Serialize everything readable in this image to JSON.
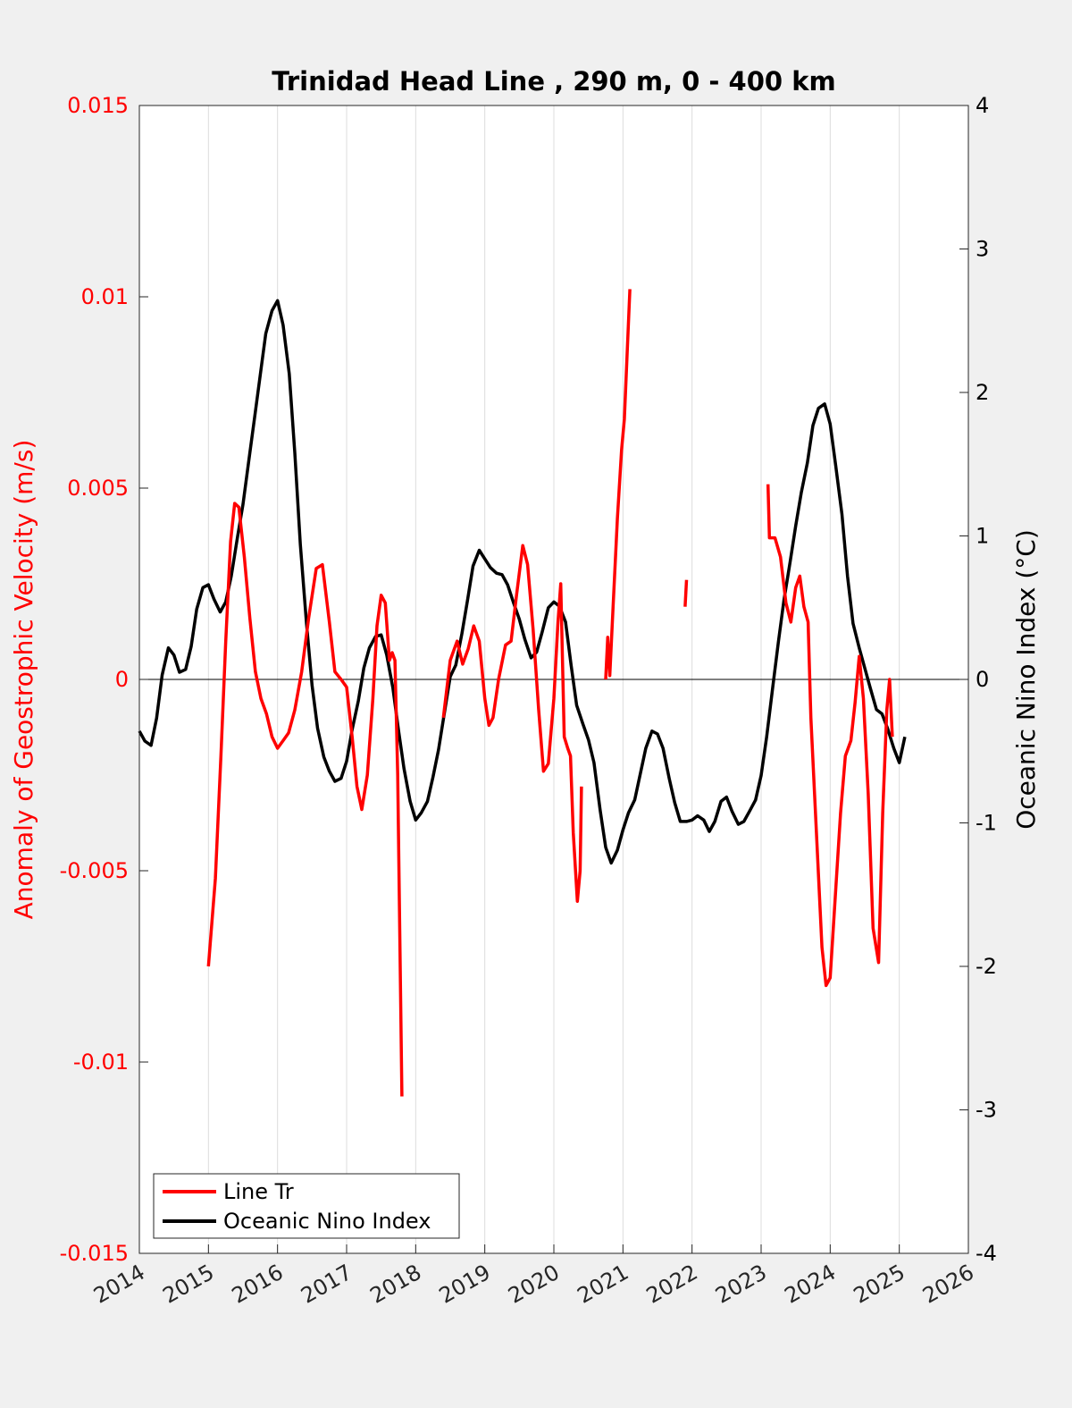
{
  "chart_data": {
    "type": "line",
    "title": "Trinidad Head Line , 290 m, 0 - 400 km",
    "ylabel_left": "Anomaly of Geostrophic Velocity (m/s)",
    "ylabel_right": "Oceanic Nino Index (°C)",
    "xlim": [
      2014,
      2026
    ],
    "ylim_left": [
      -0.015,
      0.015
    ],
    "ylim_right": [
      -4,
      4
    ],
    "x_ticks": [
      "2014",
      "2015",
      "2016",
      "2017",
      "2018",
      "2019",
      "2020",
      "2021",
      "2022",
      "2023",
      "2024",
      "2025",
      "2026"
    ],
    "y_left_ticks": [
      "0.015",
      "0.01",
      "0.005",
      "0",
      "-0.005",
      "-0.01",
      "-0.015"
    ],
    "y_left_tick_values": [
      0.015,
      0.01,
      0.005,
      0,
      -0.005,
      -0.01,
      -0.015
    ],
    "y_right_ticks": [
      "4",
      "3",
      "2",
      "1",
      "0",
      "-1",
      "-2",
      "-3",
      "-4"
    ],
    "y_right_tick_values": [
      4,
      3,
      2,
      1,
      0,
      -1,
      -2,
      -3,
      -4
    ],
    "grid_x": true,
    "legend_position": "bottom-left",
    "colors": {
      "line_tr": "#ff0000",
      "oni": "#000000"
    },
    "series": [
      {
        "name": "Line Tr",
        "axis": "left",
        "segments": [
          [
            [
              2015.0,
              -0.0075
            ],
            [
              2015.1,
              -0.0052
            ],
            [
              2015.18,
              -0.002
            ],
            [
              2015.25,
              0.001
            ],
            [
              2015.32,
              0.0036
            ],
            [
              2015.38,
              0.0046
            ],
            [
              2015.44,
              0.0045
            ],
            [
              2015.52,
              0.0032
            ],
            [
              2015.6,
              0.0016
            ],
            [
              2015.68,
              0.0002
            ],
            [
              2015.76,
              -0.0005
            ],
            [
              2015.84,
              -0.0009
            ],
            [
              2015.92,
              -0.0015
            ],
            [
              2016.0,
              -0.0018
            ],
            [
              2016.08,
              -0.0016
            ],
            [
              2016.16,
              -0.0014
            ],
            [
              2016.25,
              -0.0008
            ],
            [
              2016.35,
              0.0002
            ],
            [
              2016.45,
              0.0016
            ],
            [
              2016.56,
              0.0029
            ],
            [
              2016.65,
              0.003
            ],
            [
              2016.75,
              0.0015
            ],
            [
              2016.83,
              0.0002
            ],
            [
              2016.92,
              0.0
            ],
            [
              2017.0,
              -0.0002
            ],
            [
              2017.08,
              -0.0015
            ],
            [
              2017.15,
              -0.0028
            ],
            [
              2017.22,
              -0.0034
            ],
            [
              2017.3,
              -0.0025
            ],
            [
              2017.38,
              -0.0005
            ],
            [
              2017.44,
              0.0014
            ],
            [
              2017.5,
              0.0022
            ],
            [
              2017.56,
              0.002
            ],
            [
              2017.62,
              0.0005
            ],
            [
              2017.66,
              0.0007
            ],
            [
              2017.7,
              0.0005
            ],
            [
              2017.74,
              -0.0025
            ],
            [
              2017.8,
              -0.0109
            ]
          ],
          [
            [
              2018.4,
              -0.001
            ],
            [
              2018.5,
              0.0005
            ],
            [
              2018.6,
              0.001
            ],
            [
              2018.68,
              0.0004
            ],
            [
              2018.76,
              0.0008
            ],
            [
              2018.84,
              0.0014
            ],
            [
              2018.92,
              0.001
            ],
            [
              2019.0,
              -0.0005
            ],
            [
              2019.06,
              -0.0012
            ],
            [
              2019.12,
              -0.001
            ],
            [
              2019.2,
              0.0
            ],
            [
              2019.3,
              0.0009
            ],
            [
              2019.38,
              0.001
            ],
            [
              2019.46,
              0.0022
            ],
            [
              2019.55,
              0.0035
            ],
            [
              2019.62,
              0.003
            ],
            [
              2019.7,
              0.0013
            ],
            [
              2019.78,
              -0.0008
            ],
            [
              2019.85,
              -0.0024
            ],
            [
              2019.92,
              -0.0022
            ],
            [
              2020.0,
              -0.0005
            ],
            [
              2020.06,
              0.0015
            ],
            [
              2020.1,
              0.0025
            ],
            [
              2020.15,
              -0.0015
            ],
            [
              2020.2,
              -0.0018
            ],
            [
              2020.24,
              -0.002
            ],
            [
              2020.28,
              -0.004
            ],
            [
              2020.34,
              -0.0058
            ],
            [
              2020.38,
              -0.005
            ],
            [
              2020.4,
              -0.0028
            ]
          ],
          [
            [
              2020.75,
              0.0
            ],
            [
              2020.78,
              0.0011
            ],
            [
              2020.81,
              0.0001
            ],
            [
              2020.86,
              0.002
            ],
            [
              2020.92,
              0.0042
            ],
            [
              2020.98,
              0.006
            ],
            [
              2021.02,
              0.0068
            ],
            [
              2021.06,
              0.0085
            ],
            [
              2021.1,
              0.0102
            ]
          ],
          [
            [
              2021.9,
              0.0019
            ],
            [
              2021.92,
              0.0026
            ]
          ],
          [
            [
              2023.1,
              0.0051
            ],
            [
              2023.12,
              0.0037
            ],
            [
              2023.2,
              0.0037
            ],
            [
              2023.28,
              0.0032
            ],
            [
              2023.36,
              0.002
            ],
            [
              2023.43,
              0.0015
            ],
            [
              2023.5,
              0.0024
            ],
            [
              2023.56,
              0.0027
            ],
            [
              2023.62,
              0.0019
            ],
            [
              2023.68,
              0.0015
            ],
            [
              2023.72,
              -0.001
            ],
            [
              2023.8,
              -0.004
            ],
            [
              2023.88,
              -0.007
            ],
            [
              2023.94,
              -0.008
            ],
            [
              2024.0,
              -0.0078
            ],
            [
              2024.08,
              -0.0055
            ],
            [
              2024.15,
              -0.0035
            ],
            [
              2024.22,
              -0.002
            ],
            [
              2024.3,
              -0.0016
            ],
            [
              2024.36,
              -0.0006
            ],
            [
              2024.42,
              0.0006
            ],
            [
              2024.48,
              -0.0005
            ],
            [
              2024.55,
              -0.003
            ],
            [
              2024.62,
              -0.0065
            ],
            [
              2024.7,
              -0.0074
            ],
            [
              2024.76,
              -0.0035
            ],
            [
              2024.82,
              -0.0008
            ],
            [
              2024.86,
              0.0
            ],
            [
              2024.9,
              -0.0015
            ]
          ]
        ]
      },
      {
        "name": "Oceanic Nino Index",
        "axis": "right",
        "points": [
          [
            2014.0,
            -0.36
          ],
          [
            2014.08,
            -0.43
          ],
          [
            2014.17,
            -0.46
          ],
          [
            2014.25,
            -0.27
          ],
          [
            2014.33,
            0.03
          ],
          [
            2014.42,
            0.22
          ],
          [
            2014.5,
            0.17
          ],
          [
            2014.58,
            0.05
          ],
          [
            2014.67,
            0.07
          ],
          [
            2014.75,
            0.23
          ],
          [
            2014.83,
            0.49
          ],
          [
            2014.92,
            0.64
          ],
          [
            2015.0,
            0.66
          ],
          [
            2015.08,
            0.56
          ],
          [
            2015.17,
            0.47
          ],
          [
            2015.25,
            0.54
          ],
          [
            2015.33,
            0.72
          ],
          [
            2015.42,
            0.99
          ],
          [
            2015.5,
            1.22
          ],
          [
            2015.58,
            1.51
          ],
          [
            2015.67,
            1.83
          ],
          [
            2015.75,
            2.12
          ],
          [
            2015.83,
            2.41
          ],
          [
            2015.92,
            2.57
          ],
          [
            2016.0,
            2.64
          ],
          [
            2016.08,
            2.47
          ],
          [
            2016.17,
            2.13
          ],
          [
            2016.25,
            1.58
          ],
          [
            2016.33,
            0.94
          ],
          [
            2016.42,
            0.39
          ],
          [
            2016.5,
            -0.04
          ],
          [
            2016.58,
            -0.34
          ],
          [
            2016.67,
            -0.54
          ],
          [
            2016.75,
            -0.64
          ],
          [
            2016.83,
            -0.71
          ],
          [
            2016.92,
            -0.69
          ],
          [
            2017.0,
            -0.57
          ],
          [
            2017.08,
            -0.35
          ],
          [
            2017.17,
            -0.15
          ],
          [
            2017.25,
            0.08
          ],
          [
            2017.33,
            0.22
          ],
          [
            2017.42,
            0.3
          ],
          [
            2017.5,
            0.31
          ],
          [
            2017.58,
            0.17
          ],
          [
            2017.67,
            -0.06
          ],
          [
            2017.75,
            -0.35
          ],
          [
            2017.83,
            -0.62
          ],
          [
            2017.92,
            -0.85
          ],
          [
            2018.0,
            -0.98
          ],
          [
            2018.08,
            -0.93
          ],
          [
            2018.17,
            -0.85
          ],
          [
            2018.25,
            -0.68
          ],
          [
            2018.33,
            -0.49
          ],
          [
            2018.42,
            -0.22
          ],
          [
            2018.5,
            0.02
          ],
          [
            2018.58,
            0.1
          ],
          [
            2018.67,
            0.32
          ],
          [
            2018.75,
            0.55
          ],
          [
            2018.83,
            0.79
          ],
          [
            2018.92,
            0.9
          ],
          [
            2019.0,
            0.84
          ],
          [
            2019.08,
            0.78
          ],
          [
            2019.17,
            0.74
          ],
          [
            2019.25,
            0.73
          ],
          [
            2019.33,
            0.66
          ],
          [
            2019.42,
            0.53
          ],
          [
            2019.5,
            0.42
          ],
          [
            2019.58,
            0.28
          ],
          [
            2019.67,
            0.15
          ],
          [
            2019.75,
            0.19
          ],
          [
            2019.83,
            0.33
          ],
          [
            2019.92,
            0.5
          ],
          [
            2020.0,
            0.54
          ],
          [
            2020.08,
            0.51
          ],
          [
            2020.17,
            0.4
          ],
          [
            2020.25,
            0.1
          ],
          [
            2020.33,
            -0.18
          ],
          [
            2020.42,
            -0.31
          ],
          [
            2020.5,
            -0.42
          ],
          [
            2020.58,
            -0.58
          ],
          [
            2020.67,
            -0.91
          ],
          [
            2020.75,
            -1.17
          ],
          [
            2020.83,
            -1.28
          ],
          [
            2020.92,
            -1.19
          ],
          [
            2021.0,
            -1.05
          ],
          [
            2021.08,
            -0.93
          ],
          [
            2021.17,
            -0.84
          ],
          [
            2021.25,
            -0.66
          ],
          [
            2021.33,
            -0.48
          ],
          [
            2021.42,
            -0.36
          ],
          [
            2021.5,
            -0.38
          ],
          [
            2021.58,
            -0.48
          ],
          [
            2021.67,
            -0.69
          ],
          [
            2021.75,
            -0.86
          ],
          [
            2021.83,
            -0.99
          ],
          [
            2021.92,
            -0.99
          ],
          [
            2022.0,
            -0.98
          ],
          [
            2022.08,
            -0.95
          ],
          [
            2022.17,
            -0.98
          ],
          [
            2022.25,
            -1.06
          ],
          [
            2022.33,
            -0.99
          ],
          [
            2022.42,
            -0.85
          ],
          [
            2022.5,
            -0.82
          ],
          [
            2022.58,
            -0.92
          ],
          [
            2022.67,
            -1.01
          ],
          [
            2022.75,
            -0.99
          ],
          [
            2022.83,
            -0.92
          ],
          [
            2022.92,
            -0.84
          ],
          [
            2023.0,
            -0.67
          ],
          [
            2023.08,
            -0.4
          ],
          [
            2023.17,
            -0.05
          ],
          [
            2023.25,
            0.26
          ],
          [
            2023.33,
            0.55
          ],
          [
            2023.42,
            0.82
          ],
          [
            2023.5,
            1.07
          ],
          [
            2023.58,
            1.3
          ],
          [
            2023.67,
            1.51
          ],
          [
            2023.75,
            1.77
          ],
          [
            2023.83,
            1.89
          ],
          [
            2023.92,
            1.92
          ],
          [
            2024.0,
            1.78
          ],
          [
            2024.08,
            1.49
          ],
          [
            2024.17,
            1.15
          ],
          [
            2024.25,
            0.72
          ],
          [
            2024.33,
            0.39
          ],
          [
            2024.42,
            0.22
          ],
          [
            2024.5,
            0.08
          ],
          [
            2024.58,
            -0.06
          ],
          [
            2024.67,
            -0.21
          ],
          [
            2024.75,
            -0.24
          ],
          [
            2024.83,
            -0.34
          ],
          [
            2024.92,
            -0.48
          ],
          [
            2025.0,
            -0.58
          ],
          [
            2025.08,
            -0.4
          ]
        ]
      }
    ]
  }
}
